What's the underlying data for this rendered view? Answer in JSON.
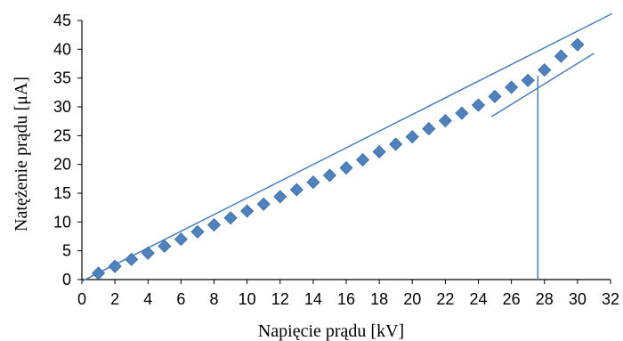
{
  "chart_data": {
    "type": "scatter",
    "title": "",
    "xlabel": "Napięcie prądu [kV]",
    "ylabel": "Natężenie prądu [μA]",
    "xlim": [
      0,
      32
    ],
    "ylim": [
      0,
      45
    ],
    "x_ticks": [
      0,
      2,
      4,
      6,
      8,
      10,
      12,
      14,
      16,
      18,
      20,
      22,
      24,
      26,
      28,
      30,
      32
    ],
    "y_ticks": [
      0,
      5,
      10,
      15,
      20,
      25,
      30,
      35,
      40,
      45
    ],
    "grid": false,
    "legend": "none",
    "series": [
      {
        "x": [
          1,
          2,
          3,
          4,
          5,
          6,
          7,
          8,
          9,
          10,
          11,
          12,
          13,
          14,
          15,
          16,
          17,
          18,
          19,
          20,
          21,
          22,
          23,
          24,
          25,
          26,
          27,
          28,
          29,
          30
        ],
        "y": [
          1.1,
          2.3,
          3.5,
          4.6,
          5.8,
          7.0,
          8.3,
          9.5,
          10.7,
          11.9,
          13.1,
          14.4,
          15.6,
          16.9,
          18.1,
          19.4,
          20.8,
          22.2,
          23.5,
          24.8,
          26.2,
          27.6,
          28.9,
          30.3,
          31.8,
          33.4,
          34.6,
          36.4,
          38.8,
          40.8
        ]
      }
    ],
    "lines": [
      {
        "x": [
          0,
          32.1
        ],
        "y": [
          -0.3,
          46.2
        ]
      },
      {
        "x": [
          24.8,
          31.0
        ],
        "y": [
          28.3,
          39.3
        ]
      },
      {
        "x": [
          27.6,
          27.6
        ],
        "y": [
          0,
          35.4
        ]
      }
    ],
    "colors": {
      "marker": "#4F81BD",
      "line": "#4A7EBB",
      "axis": "#000000"
    }
  }
}
